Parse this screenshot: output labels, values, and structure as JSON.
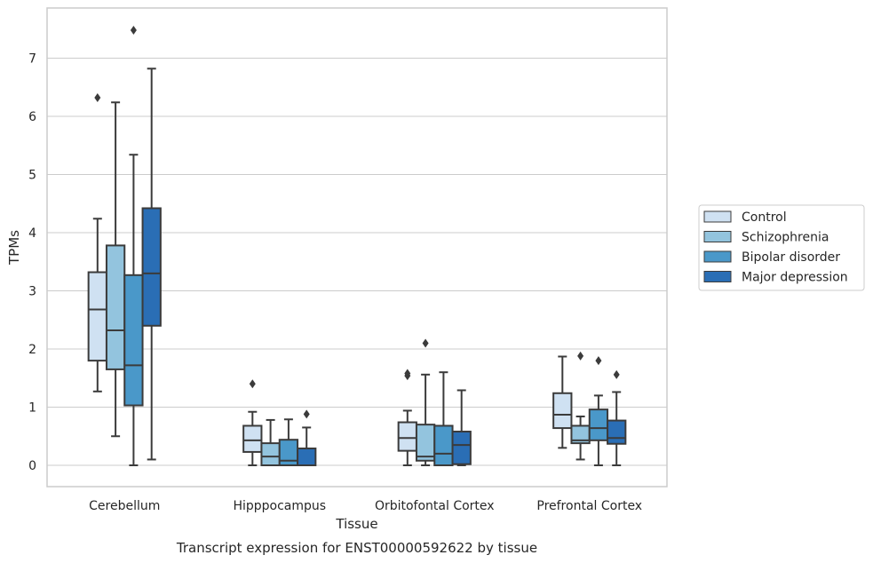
{
  "chart_data": {
    "type": "box",
    "xlabel": "Tissue",
    "ylabel": "TPMs",
    "caption": "Transcript expression for ENST00000592622 by tissue",
    "ylim": [
      -0.35,
      7.85
    ],
    "yticks": [
      0,
      1,
      2,
      3,
      4,
      5,
      6,
      7
    ],
    "grid": true,
    "legend_position": "right",
    "categories": [
      "Cerebellum",
      "Hipppocampus",
      "Orbitofontal Cortex",
      "Prefrontal Cortex"
    ],
    "series": [
      {
        "name": "Control",
        "color": "#cfe1f2",
        "boxes": [
          {
            "whislo": 1.27,
            "q1": 1.8,
            "med": 2.68,
            "q3": 3.32,
            "whishi": 4.24,
            "fliers": [
              6.32
            ]
          },
          {
            "whislo": 0.0,
            "q1": 0.23,
            "med": 0.43,
            "q3": 0.68,
            "whishi": 0.92,
            "fliers": [
              1.4
            ]
          },
          {
            "whislo": 0.0,
            "q1": 0.25,
            "med": 0.47,
            "q3": 0.74,
            "whishi": 0.94,
            "fliers": [
              1.54,
              1.58
            ]
          },
          {
            "whislo": 0.3,
            "q1": 0.64,
            "med": 0.87,
            "q3": 1.24,
            "whishi": 1.87,
            "fliers": []
          }
        ]
      },
      {
        "name": "Schizophrenia",
        "color": "#93c4de",
        "boxes": [
          {
            "whislo": 0.5,
            "q1": 1.65,
            "med": 2.32,
            "q3": 3.78,
            "whishi": 6.24,
            "fliers": []
          },
          {
            "whislo": 0.0,
            "q1": 0.0,
            "med": 0.15,
            "q3": 0.38,
            "whishi": 0.78,
            "fliers": []
          },
          {
            "whislo": 0.0,
            "q1": 0.08,
            "med": 0.15,
            "q3": 0.7,
            "whishi": 1.56,
            "fliers": [
              2.1
            ]
          },
          {
            "whislo": 0.1,
            "q1": 0.38,
            "med": 0.43,
            "q3": 0.68,
            "whishi": 0.84,
            "fliers": [
              1.88
            ]
          }
        ]
      },
      {
        "name": "Bipolar disorder",
        "color": "#4a98c9",
        "boxes": [
          {
            "whislo": 0.0,
            "q1": 1.03,
            "med": 1.72,
            "q3": 3.27,
            "whishi": 5.34,
            "fliers": [
              7.48
            ]
          },
          {
            "whislo": 0.0,
            "q1": 0.0,
            "med": 0.08,
            "q3": 0.44,
            "whishi": 0.79,
            "fliers": []
          },
          {
            "whislo": 0.0,
            "q1": 0.0,
            "med": 0.2,
            "q3": 0.68,
            "whishi": 1.6,
            "fliers": []
          },
          {
            "whislo": 0.0,
            "q1": 0.43,
            "med": 0.64,
            "q3": 0.96,
            "whishi": 1.2,
            "fliers": [
              1.8
            ]
          }
        ]
      },
      {
        "name": "Major depression",
        "color": "#2a6eb5",
        "boxes": [
          {
            "whislo": 0.1,
            "q1": 2.4,
            "med": 3.3,
            "q3": 4.42,
            "whishi": 6.82,
            "fliers": []
          },
          {
            "whislo": 0.0,
            "q1": 0.0,
            "med": 0.0,
            "q3": 0.29,
            "whishi": 0.65,
            "fliers": [
              0.88
            ]
          },
          {
            "whislo": 0.0,
            "q1": 0.02,
            "med": 0.35,
            "q3": 0.58,
            "whishi": 1.29,
            "fliers": []
          },
          {
            "whislo": 0.0,
            "q1": 0.37,
            "med": 0.47,
            "q3": 0.77,
            "whishi": 1.26,
            "fliers": [
              1.56
            ]
          }
        ]
      }
    ]
  }
}
